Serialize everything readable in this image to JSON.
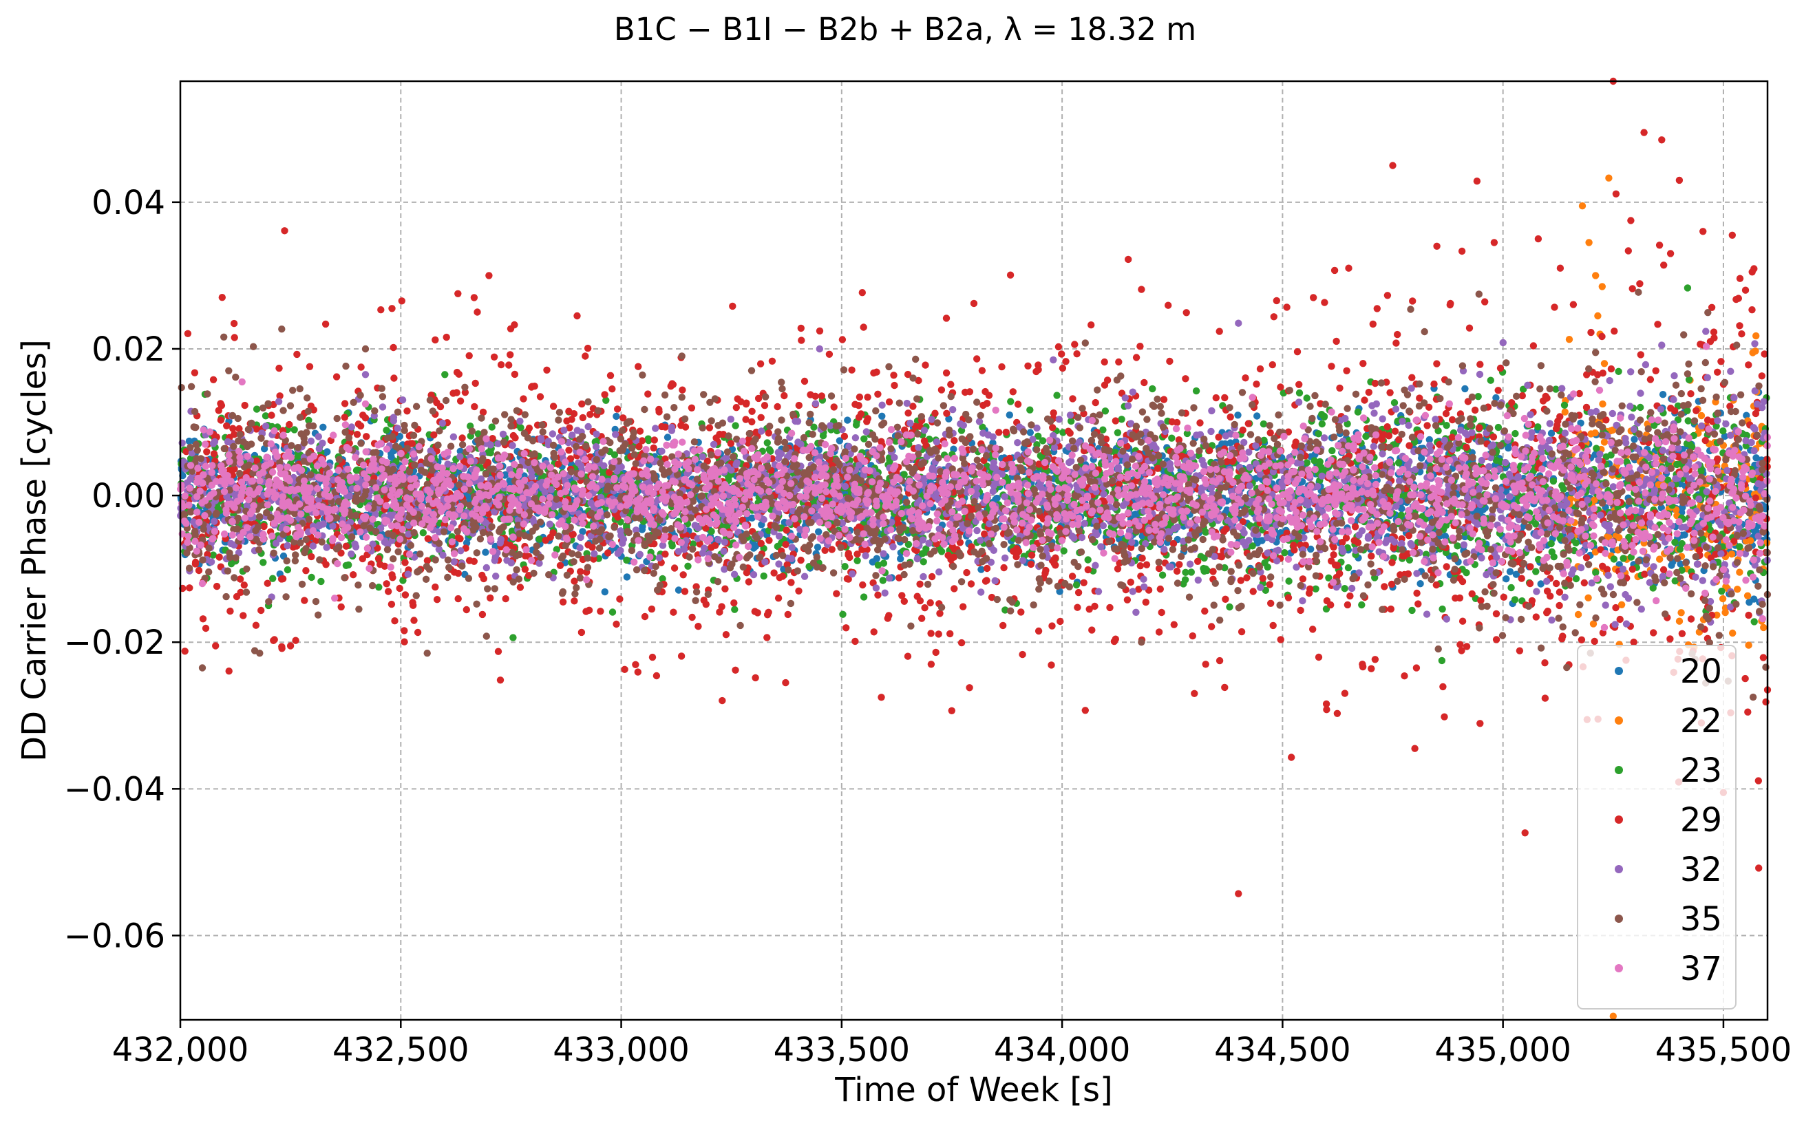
{
  "chart_data": {
    "type": "scatter",
    "title": "B1C − B1I − B2b + B2a, λ = 18.32 m",
    "xlabel": "Time of Week [s]",
    "ylabel": "DD Carrier Phase [cycles]",
    "xlim": [
      432000,
      435600
    ],
    "ylim": [
      -0.0715,
      0.0565
    ],
    "x_ticks": [
      432000,
      432500,
      433000,
      433500,
      434000,
      434500,
      435000,
      435500
    ],
    "x_tick_labels": [
      "432,000",
      "432,500",
      "433,000",
      "433,500",
      "434,000",
      "434,500",
      "435,000",
      "435,500"
    ],
    "y_ticks": [
      -0.06,
      -0.04,
      -0.02,
      0.0,
      0.02,
      0.04
    ],
    "y_tick_labels": [
      "−0.06",
      "−0.04",
      "−0.02",
      "0.00",
      "0.02",
      "0.04"
    ],
    "grid": true,
    "legend_position": "lower-right",
    "series": [
      {
        "name": "20",
        "color": "#1f77b4",
        "spread": 0.004,
        "bounds": [
          432000,
          435600
        ],
        "outliers": [
          [
            433000,
            -0.0083
          ],
          [
            434250,
            -0.0095
          ],
          [
            434750,
            -0.0125
          ],
          [
            434880,
            -0.0108
          ]
        ]
      },
      {
        "name": "22",
        "color": "#ff7f0e",
        "spread": 0.005,
        "bounds": [
          435140,
          435600
        ],
        "outliers": [
          [
            435180,
            0.0395
          ],
          [
            435195,
            0.0345
          ],
          [
            435210,
            0.03
          ],
          [
            435225,
            0.0285
          ],
          [
            435240,
            0.0433
          ],
          [
            435220,
            0.022
          ],
          [
            435230,
            0.018
          ],
          [
            435215,
            0.0245
          ],
          [
            435205,
            -0.0175
          ],
          [
            435250,
            -0.071
          ]
        ]
      },
      {
        "name": "23",
        "color": "#2ca02c",
        "spread": 0.005,
        "bounds": [
          432000,
          435600
        ],
        "outliers": [
          [
            432200,
            -0.015
          ],
          [
            432450,
            -0.0125
          ],
          [
            434700,
            0.0155
          ],
          [
            435120,
            0.0145
          ],
          [
            432600,
            0.0165
          ]
        ]
      },
      {
        "name": "29",
        "color": "#d62728",
        "spread": 0.01,
        "bounds": [
          432000,
          435600
        ],
        "outliers": [
          [
            432700,
            0.03
          ],
          [
            432480,
            0.0255
          ],
          [
            432900,
            0.0245
          ],
          [
            433800,
            0.0262
          ],
          [
            434150,
            0.0322
          ],
          [
            434400,
            -0.0543
          ],
          [
            434520,
            -0.0357
          ],
          [
            434750,
            0.045
          ],
          [
            434880,
            0.026
          ],
          [
            435050,
            -0.046
          ],
          [
            435250,
            0.0565
          ],
          [
            435320,
            0.0495
          ],
          [
            435360,
            0.0485
          ],
          [
            435400,
            0.043
          ],
          [
            435520,
            0.0355
          ],
          [
            435580,
            -0.0508
          ],
          [
            435290,
            0.0375
          ],
          [
            435130,
            0.031
          ],
          [
            434980,
            0.0345
          ],
          [
            435550,
            0.028
          ],
          [
            435500,
            -0.0405
          ],
          [
            435600,
            -0.0265
          ],
          [
            435450,
            -0.031
          ],
          [
            435380,
            0.033
          ],
          [
            434600,
            -0.0292
          ],
          [
            434800,
            -0.0345
          ],
          [
            434300,
            -0.027
          ],
          [
            433790,
            -0.0262
          ],
          [
            432080,
            -0.0205
          ],
          [
            432250,
            -0.0205
          ],
          [
            434180,
            0.0281
          ],
          [
            434850,
            0.034
          ],
          [
            435080,
            0.035
          ],
          [
            434570,
            0.027
          ],
          [
            434650,
            0.031
          ]
        ]
      },
      {
        "name": "32",
        "color": "#9467bd",
        "spread": 0.005,
        "bounds": [
          432000,
          435600
        ],
        "outliers": [
          [
            432420,
            0.0165
          ],
          [
            433450,
            0.02
          ],
          [
            433980,
            0.0185
          ],
          [
            434400,
            0.0235
          ],
          [
            434910,
            0.017
          ],
          [
            435360,
            0.0205
          ],
          [
            435280,
            -0.0175
          ]
        ]
      },
      {
        "name": "35",
        "color": "#8c564b",
        "spread": 0.0065,
        "bounds": [
          432000,
          435600
        ],
        "outliers": [
          [
            432230,
            0.0227
          ],
          [
            432420,
            0.02
          ],
          [
            432050,
            -0.0235
          ],
          [
            432560,
            -0.0215
          ],
          [
            432180,
            -0.0215
          ],
          [
            435210,
            0.0195
          ],
          [
            434180,
            -0.02
          ],
          [
            435530,
            0.0205
          ]
        ]
      },
      {
        "name": "37",
        "color": "#e377c2",
        "spread": 0.0035,
        "bounds": [
          432000,
          435600
        ],
        "outliers": [
          [
            432140,
            0.0155
          ],
          [
            432420,
            0.0125
          ],
          [
            432050,
            -0.012
          ],
          [
            432350,
            -0.014
          ],
          [
            435230,
            -0.018
          ]
        ]
      }
    ]
  }
}
